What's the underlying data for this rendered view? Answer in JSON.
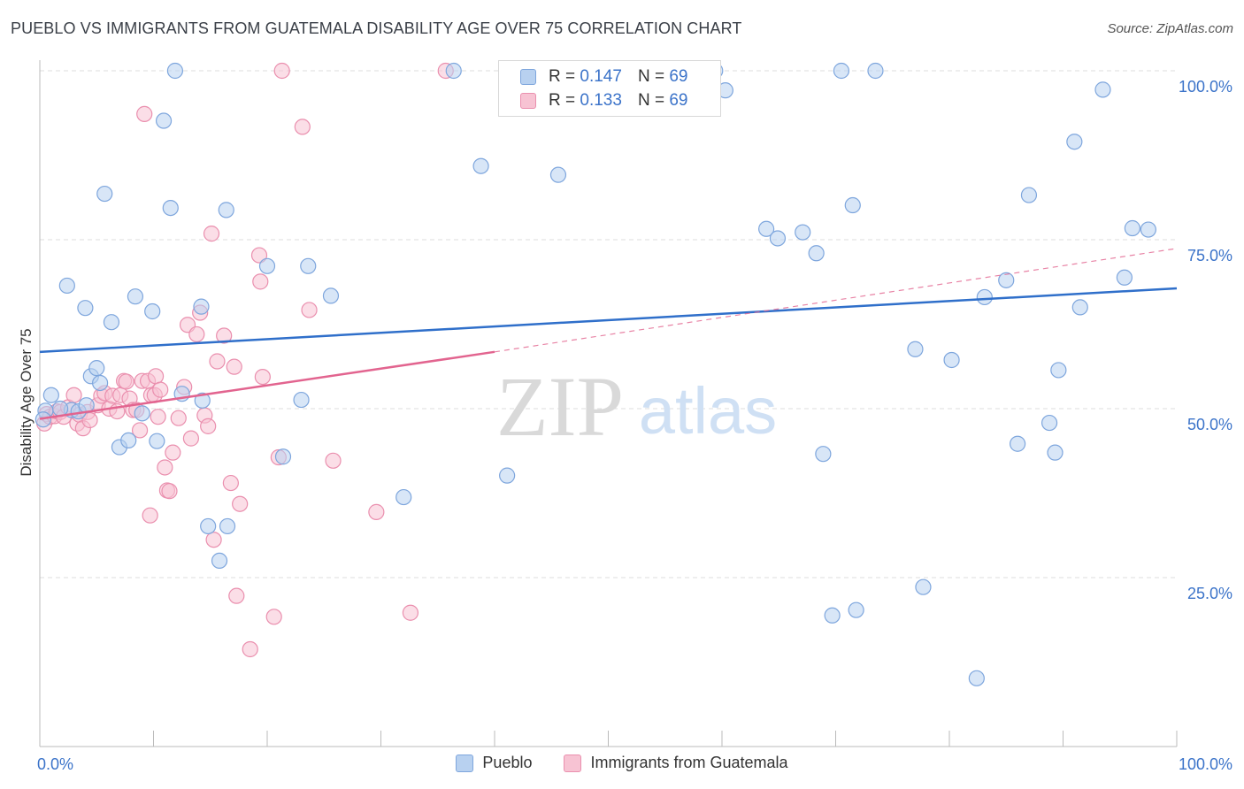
{
  "title": "PUEBLO VS IMMIGRANTS FROM GUATEMALA DISABILITY AGE OVER 75 CORRELATION CHART",
  "source": "Source: ZipAtlas.com",
  "watermark": {
    "zip": "ZIP",
    "atlas": "atlas"
  },
  "colors": {
    "blue_fill": "#b8d1f0",
    "blue_stroke": "#7ea6dd",
    "blue_line": "#2f6fca",
    "pink_fill": "#f7c3d3",
    "pink_stroke": "#ea8fae",
    "pink_line": "#e2648f",
    "axis_text": "#3b73c9",
    "grid": "#dddddd"
  },
  "legend": {
    "rows": [
      {
        "r_label": "R =",
        "r_value": "0.147",
        "n_label": "N =",
        "n_value": "69"
      },
      {
        "r_label": "R =",
        "r_value": "0.133",
        "n_label": "N =",
        "n_value": "69"
      }
    ]
  },
  "chart_data": {
    "type": "scatter",
    "title": "PUEBLO VS IMMIGRANTS FROM GUATEMALA DISABILITY AGE OVER 75 CORRELATION CHART",
    "xlabel": "",
    "ylabel": "Disability Age Over 75",
    "xlim": [
      0,
      100
    ],
    "ylim": [
      0,
      100
    ],
    "x_ticks": [
      "0.0%",
      "100.0%"
    ],
    "y_ticks": [
      {
        "value": 100,
        "label": "100.0%"
      },
      {
        "value": 75,
        "label": "75.0%"
      },
      {
        "value": 50,
        "label": "50.0%"
      },
      {
        "value": 25,
        "label": "25.0%"
      }
    ],
    "grid": true,
    "legend_position": "top-center",
    "series": [
      {
        "name": "Pueblo",
        "r": 0.147,
        "n": 69,
        "trend": {
          "x0": 0,
          "y0": 58.4,
          "x1": 100,
          "y1": 67.8
        },
        "points": [
          [
            0.5,
            49.7
          ],
          [
            1.0,
            52.0
          ],
          [
            0.3,
            48.4
          ],
          [
            2.4,
            68.2
          ],
          [
            4.0,
            64.9
          ],
          [
            4.5,
            54.8
          ],
          [
            5.0,
            56.0
          ],
          [
            5.3,
            53.8
          ],
          [
            5.7,
            81.8
          ],
          [
            6.3,
            62.8
          ],
          [
            7.0,
            44.3
          ],
          [
            8.4,
            66.6
          ],
          [
            9.0,
            49.3
          ],
          [
            9.9,
            64.4
          ],
          [
            10.3,
            45.2
          ],
          [
            10.9,
            92.6
          ],
          [
            11.5,
            79.7
          ],
          [
            11.9,
            100
          ],
          [
            12.5,
            52.2
          ],
          [
            14.2,
            65.1
          ],
          [
            14.3,
            51.2
          ],
          [
            14.8,
            32.6
          ],
          [
            15.8,
            27.5
          ],
          [
            16.4,
            79.4
          ],
          [
            16.5,
            32.6
          ],
          [
            20.0,
            71.1
          ],
          [
            21.4,
            42.9
          ],
          [
            23.0,
            51.3
          ],
          [
            23.6,
            71.1
          ],
          [
            25.6,
            66.7
          ],
          [
            32.0,
            36.9
          ],
          [
            36.4,
            100
          ],
          [
            38.8,
            85.9
          ],
          [
            41.1,
            40.1
          ],
          [
            45.6,
            84.6
          ],
          [
            59.4,
            100
          ],
          [
            60.3,
            97.1
          ],
          [
            63.9,
            76.6
          ],
          [
            64.9,
            75.2
          ],
          [
            67.1,
            76.1
          ],
          [
            68.3,
            73.0
          ],
          [
            68.9,
            43.3
          ],
          [
            69.7,
            19.4
          ],
          [
            70.5,
            100
          ],
          [
            71.5,
            80.1
          ],
          [
            71.8,
            20.2
          ],
          [
            73.5,
            100
          ],
          [
            77.0,
            58.8
          ],
          [
            77.7,
            23.6
          ],
          [
            80.2,
            57.2
          ],
          [
            82.4,
            10.1
          ],
          [
            83.1,
            66.5
          ],
          [
            85.0,
            69.0
          ],
          [
            86.0,
            44.8
          ],
          [
            87.0,
            81.6
          ],
          [
            88.8,
            47.9
          ],
          [
            89.3,
            43.5
          ],
          [
            89.6,
            55.7
          ],
          [
            91.0,
            89.5
          ],
          [
            91.5,
            65.0
          ],
          [
            93.5,
            97.2
          ],
          [
            95.4,
            69.4
          ],
          [
            96.1,
            76.7
          ],
          [
            97.5,
            76.5
          ],
          [
            2.8,
            49.8
          ],
          [
            3.4,
            49.6
          ],
          [
            7.8,
            45.3
          ],
          [
            4.1,
            50.5
          ],
          [
            1.8,
            50.0
          ]
        ]
      },
      {
        "name": "Immigrants from Guatemala",
        "r": 0.133,
        "n": 69,
        "trend": {
          "x0": 0,
          "y0": 48.5,
          "x1": 40,
          "y1": 58.4,
          "dash_x1": 100,
          "dash_y1": 73.7
        },
        "points": [
          [
            0.4,
            47.8
          ],
          [
            0.6,
            49.2
          ],
          [
            0.9,
            48.8
          ],
          [
            1.3,
            48.9
          ],
          [
            1.5,
            49.6
          ],
          [
            1.8,
            49.5
          ],
          [
            2.1,
            48.8
          ],
          [
            2.5,
            50.2
          ],
          [
            3.0,
            52.0
          ],
          [
            3.3,
            47.8
          ],
          [
            3.5,
            49.1
          ],
          [
            3.8,
            47.1
          ],
          [
            4.2,
            49.5
          ],
          [
            4.4,
            48.3
          ],
          [
            5.1,
            50.5
          ],
          [
            5.4,
            51.9
          ],
          [
            5.7,
            52.3
          ],
          [
            6.1,
            50.0
          ],
          [
            6.4,
            51.9
          ],
          [
            6.8,
            49.6
          ],
          [
            7.1,
            52.0
          ],
          [
            7.4,
            54.1
          ],
          [
            7.6,
            54.0
          ],
          [
            7.9,
            51.5
          ],
          [
            8.2,
            49.8
          ],
          [
            8.5,
            49.8
          ],
          [
            8.8,
            46.8
          ],
          [
            9.0,
            54.1
          ],
          [
            9.2,
            93.6
          ],
          [
            9.5,
            54.1
          ],
          [
            9.7,
            34.2
          ],
          [
            9.8,
            52.0
          ],
          [
            10.1,
            52.0
          ],
          [
            10.2,
            54.8
          ],
          [
            10.4,
            48.8
          ],
          [
            10.6,
            52.8
          ],
          [
            11.0,
            41.3
          ],
          [
            11.2,
            37.9
          ],
          [
            11.4,
            37.8
          ],
          [
            11.7,
            43.5
          ],
          [
            12.2,
            48.6
          ],
          [
            12.7,
            53.2
          ],
          [
            13.0,
            62.4
          ],
          [
            13.3,
            45.6
          ],
          [
            13.8,
            61.0
          ],
          [
            14.1,
            64.2
          ],
          [
            14.5,
            49.0
          ],
          [
            14.8,
            47.4
          ],
          [
            15.1,
            75.9
          ],
          [
            15.3,
            30.6
          ],
          [
            15.6,
            57.0
          ],
          [
            16.2,
            60.8
          ],
          [
            16.8,
            39.0
          ],
          [
            17.1,
            56.2
          ],
          [
            17.3,
            22.3
          ],
          [
            17.6,
            35.9
          ],
          [
            18.5,
            14.4
          ],
          [
            19.3,
            72.7
          ],
          [
            19.4,
            68.8
          ],
          [
            19.6,
            54.7
          ],
          [
            20.6,
            19.2
          ],
          [
            21.0,
            42.8
          ],
          [
            21.3,
            100
          ],
          [
            23.1,
            91.7
          ],
          [
            23.7,
            64.6
          ],
          [
            25.8,
            42.3
          ],
          [
            29.6,
            34.7
          ],
          [
            32.6,
            19.8
          ],
          [
            35.7,
            100
          ]
        ]
      }
    ]
  },
  "bottom_legend": [
    "Pueblo",
    "Immigrants from Guatemala"
  ]
}
